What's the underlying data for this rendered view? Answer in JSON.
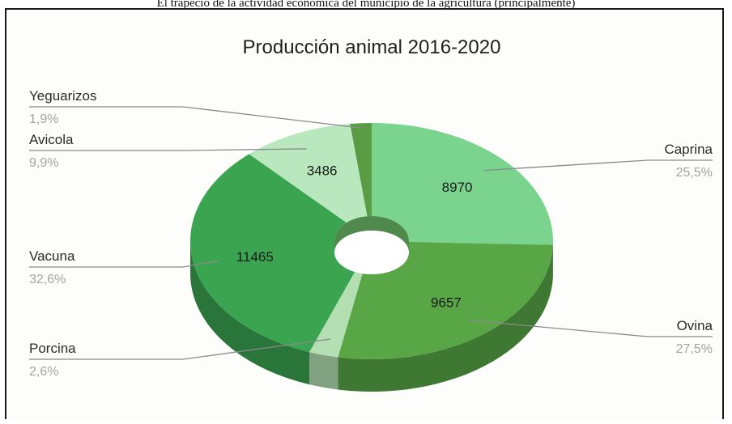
{
  "cropped_caption": "El trapecio de la actividad económica del municipio de la agricultura (principalmente)",
  "chart_data": {
    "type": "pie",
    "title": "Producción animal 2016-2020",
    "labels": [
      "Caprina",
      "Ovina",
      "Porcina",
      "Vacuna",
      "Avicola",
      "Yeguarizos"
    ],
    "values": [
      8970,
      9657,
      916,
      11465,
      3486,
      668
    ],
    "value_labels": [
      "8970",
      "9657",
      "",
      "11465",
      "3486",
      ""
    ],
    "percentages": [
      "25,5%",
      "27,5%",
      "2,6%",
      "32,6%",
      "9,9%",
      "1,9%"
    ],
    "colors": [
      "#7bd48e",
      "#58a646",
      "#b3dfb2",
      "#3aa451",
      "#b9e8bf",
      "#5a9c43"
    ],
    "legend": "labels-with-leader-lines"
  }
}
